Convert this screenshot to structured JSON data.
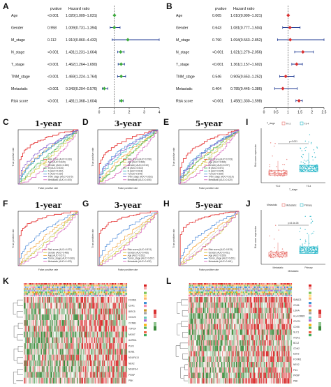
{
  "panel_labels": {
    "A": "A",
    "B": "B",
    "C": "C",
    "D": "D",
    "E": "E",
    "I": "I",
    "F": "F",
    "G": "G",
    "H": "H",
    "J": "J",
    "K": "K",
    "L": "L"
  },
  "chart_data": [
    {
      "id": "A",
      "type": "forest",
      "columns": {
        "pvalue": "pvalue",
        "hr": "Hazard ratio"
      },
      "xlabel": "Hazard ratio",
      "xticks": [
        0,
        1,
        2,
        3,
        4
      ],
      "xlim": [
        0,
        4
      ],
      "ref_line": 1,
      "color": "#3daa3d",
      "rows": [
        {
          "name": "Age",
          "pvalue": "<0.001",
          "hr_text": "1.020(1.009–1.031)",
          "hr": 1.02,
          "lo": 1.009,
          "hi": 1.031
        },
        {
          "name": "Gender",
          "pvalue": "0.958",
          "hr_text": "1.009(0.731–1.394)",
          "hr": 1.009,
          "lo": 0.731,
          "hi": 1.394
        },
        {
          "name": "M_stage",
          "pvalue": "0.112",
          "hr_text": "1.910(0.860–4.432)",
          "hr": 1.91,
          "lo": 0.86,
          "hi": 4.432
        },
        {
          "name": "N_stage",
          "pvalue": "<0.001",
          "hr_text": "1.431(1.231–1.664)",
          "hr": 1.431,
          "lo": 1.231,
          "hi": 1.664
        },
        {
          "name": "T_stage",
          "pvalue": "<0.001",
          "hr_text": "1.462(1.264–1.690)",
          "hr": 1.462,
          "lo": 1.264,
          "hi": 1.69
        },
        {
          "name": "TNM_stage",
          "pvalue": "<0.001",
          "hr_text": "1.469(1.224–1.764)",
          "hr": 1.469,
          "lo": 1.224,
          "hi": 1.764
        },
        {
          "name": "Metastatic",
          "pvalue": "<0.001",
          "hr_text": "0.343(0.204–0.576)",
          "hr": 0.343,
          "lo": 0.204,
          "hi": 0.576
        },
        {
          "name": "Risk score",
          "pvalue": "<0.001",
          "hr_text": "1.481(1.368–1.604)",
          "hr": 1.481,
          "lo": 1.368,
          "hi": 1.604
        }
      ]
    },
    {
      "id": "B",
      "type": "forest",
      "columns": {
        "pvalue": "pvalue",
        "hr": "Hazard ratio"
      },
      "xlabel": "Hazard ratio",
      "xticks": [
        0,
        0.5,
        1,
        1.5,
        2,
        2.5
      ],
      "xlim": [
        0,
        2.5
      ],
      "ref_line": 1,
      "color": "#d93030",
      "rows": [
        {
          "name": "Age",
          "pvalue": "0.065",
          "hr_text": "1.010(0.999–1.021)",
          "hr": 1.01,
          "lo": 0.999,
          "hi": 1.021
        },
        {
          "name": "Gender",
          "pvalue": "0.643",
          "hr_text": "1.081(0.777–1.504)",
          "hr": 1.081,
          "lo": 0.777,
          "hi": 1.504
        },
        {
          "name": "M_stage",
          "pvalue": "0.790",
          "hr_text": "1.094(0.563–2.852)",
          "hr": 1.094,
          "lo": 0.563,
          "hi": 2.852
        },
        {
          "name": "N_stage",
          "pvalue": "<0.001",
          "hr_text": "1.621(1.279–2.056)",
          "hr": 1.621,
          "lo": 1.279,
          "hi": 2.056
        },
        {
          "name": "T_stage",
          "pvalue": "<0.001",
          "hr_text": "1.361(1.157–1.602)",
          "hr": 1.361,
          "lo": 1.157,
          "hi": 1.602
        },
        {
          "name": "TNM_stage",
          "pvalue": "0.546",
          "hr_text": "0.905(0.653–1.252)",
          "hr": 0.905,
          "lo": 0.653,
          "hi": 1.252
        },
        {
          "name": "Metastatic",
          "pvalue": "0.404",
          "hr_text": "0.785(0.445–1.386)",
          "hr": 0.785,
          "lo": 0.445,
          "hi": 1.386
        },
        {
          "name": "Risk score",
          "pvalue": "<0.001",
          "hr_text": "1.458(1.330–1.598)",
          "hr": 1.458,
          "lo": 1.33,
          "hi": 1.598
        }
      ]
    },
    {
      "id": "C",
      "type": "line",
      "title": "1-year",
      "xlabel": "False positive rate",
      "ylabel": "True positive rate",
      "xlim": [
        0,
        1
      ],
      "ylim": [
        0,
        1
      ],
      "series": [
        {
          "name": "Risk score (AUC=0.819)",
          "color": "#e63c3c"
        },
        {
          "name": "Age (AUC=0.629)",
          "color": "#f0a030"
        },
        {
          "name": "Gender (AUC=0.480)",
          "color": "#c7c42c"
        },
        {
          "name": "M (AUC=0.534)",
          "color": "#3cb44b"
        },
        {
          "name": "N (AUC=0.613)",
          "color": "#2fb8b8"
        },
        {
          "name": "T (AUC=0.614)",
          "color": "#3a7fd5"
        },
        {
          "name": "TNM_stage (AUC=0.675)",
          "color": "#7b4fc9"
        },
        {
          "name": "Metastatic (AUC=0.400)",
          "color": "#d455b5"
        }
      ]
    },
    {
      "id": "D",
      "type": "line",
      "title": "3-year",
      "xlabel": "False positive rate",
      "ylabel": "True positive rate",
      "xlim": [
        0,
        1
      ],
      "ylim": [
        0,
        1
      ],
      "series": [
        {
          "name": "Risk score (AUC=0.780)",
          "color": "#e63c3c"
        },
        {
          "name": "Age (AUC=0.566)",
          "color": "#f0a030"
        },
        {
          "name": "Gender (AUC=0.510)",
          "color": "#c7c42c"
        },
        {
          "name": "M (AUC=0.513)",
          "color": "#3cb44b"
        },
        {
          "name": "N (AUC=0.618)",
          "color": "#2fb8b8"
        },
        {
          "name": "T (AUC=0.675)",
          "color": "#3a7fd5"
        },
        {
          "name": "TNM_stage (AUC=0.652)",
          "color": "#7b4fc9"
        },
        {
          "name": "Metastatic (AUC=0.406)",
          "color": "#d455b5"
        }
      ]
    },
    {
      "id": "E",
      "type": "line",
      "title": "5-year",
      "xlabel": "False positive rate",
      "ylabel": "True positive rate",
      "xlim": [
        0,
        1
      ],
      "ylim": [
        0,
        1
      ],
      "series": [
        {
          "name": "Risk score (AUC=0.763)",
          "color": "#e63c3c"
        },
        {
          "name": "Age (AUC=0.566)",
          "color": "#f0a030"
        },
        {
          "name": "Gender (AUC=0.497)",
          "color": "#c7c42c"
        },
        {
          "name": "M (AUC=0.571)",
          "color": "#3cb44b"
        },
        {
          "name": "N (AUC=0.625)",
          "color": "#2fb8b8"
        },
        {
          "name": "T (AUC=0.639)",
          "color": "#3a7fd5"
        },
        {
          "name": "TNM_stage (AUC=0.619)",
          "color": "#7b4fc9"
        },
        {
          "name": "Metastatic (AUC=0.420)",
          "color": "#d455b5"
        }
      ]
    },
    {
      "id": "F",
      "type": "line",
      "title": "1-year",
      "xlabel": "False positive rate",
      "ylabel": "True positive rate",
      "xlim": [
        0,
        1
      ],
      "ylim": [
        0,
        1
      ],
      "series": [
        {
          "name": "Risk score (AUC=0.872)",
          "color": "#e63c3c"
        },
        {
          "name": "Gender (AUC=0.486)",
          "color": "#c7c42c"
        },
        {
          "name": "Age (AUC=0.571)",
          "color": "#f0a030"
        },
        {
          "name": "Tumor_stage (AUC=0.660)",
          "color": "#3a7fd5"
        },
        {
          "name": "Metastatic (AUC=0.429)",
          "color": "#d455b5"
        }
      ]
    },
    {
      "id": "G",
      "type": "line",
      "title": "3-year",
      "xlabel": "False positive rate",
      "ylabel": "True positive rate",
      "xlim": [
        0,
        1
      ],
      "ylim": [
        0,
        1
      ],
      "series": [
        {
          "name": "Risk score (AUC=0.874)",
          "color": "#e63c3c"
        },
        {
          "name": "Gender (AUC=0.465)",
          "color": "#c7c42c"
        },
        {
          "name": "Age (AUC=0.552)",
          "color": "#f0a030"
        },
        {
          "name": "Tumor_stage (AUC=0.657)",
          "color": "#3a7fd5"
        },
        {
          "name": "Metastatic (AUC=0.432)",
          "color": "#d455b5"
        }
      ]
    },
    {
      "id": "H",
      "type": "line",
      "title": "5-year",
      "xlabel": "False positive rate",
      "ylabel": "True positive rate",
      "xlim": [
        0,
        1
      ],
      "ylim": [
        0,
        1
      ],
      "series": [
        {
          "name": "Risk score (AUC=0.878)",
          "color": "#e63c3c"
        },
        {
          "name": "Gender (AUC=0.451)",
          "color": "#c7c42c"
        },
        {
          "name": "Age (AUC=0.559)",
          "color": "#f0a030"
        },
        {
          "name": "Tumor_stage (AUC=0.651)",
          "color": "#3a7fd5"
        },
        {
          "name": "Metastatic (AUC=0.461)",
          "color": "#d455b5"
        }
      ]
    },
    {
      "id": "I",
      "type": "box",
      "legend_title": "T_stage",
      "groups": [
        "T0-2",
        "T3-4"
      ],
      "colors": [
        "#e8706a",
        "#2ab7c9"
      ],
      "xlabel": "T_stage",
      "ylabel": "Risk score expression",
      "pvalue": "p=0.001"
    },
    {
      "id": "J",
      "type": "box",
      "legend_title": "Metastatic",
      "groups": [
        "Metastatic",
        "Primary"
      ],
      "colors": [
        "#e8706a",
        "#2ab7c9"
      ],
      "xlabel": "Metastatic",
      "ylabel": "Risk score expression",
      "pvalue": "p=8.4e-05"
    },
    {
      "id": "K",
      "type": "heatmap",
      "genes": [
        "FOXM1",
        "CDK1",
        "BIRC5",
        "CDC20",
        "CCNB1",
        "TOP2A",
        "MKI67",
        "AURKA",
        "PLK1",
        "BUB1",
        "NDUFA13",
        "NEK2",
        "NDUFS4",
        "PRNP",
        "PBK"
      ],
      "colors": [
        "#3b8a3b",
        "#ffffff",
        "#d93030"
      ]
    },
    {
      "id": "L",
      "type": "heatmap",
      "genes": [
        "SMAD3",
        "CD36",
        "LDHA",
        "HLA-DRB5",
        "CD274",
        "CDK6",
        "SLC1",
        "ITGA1",
        "BCL2",
        "CDH2",
        "EZH2",
        "FOXM1",
        "NEK2",
        "FN1",
        "PRNP",
        "PBK"
      ],
      "colors": [
        "#3b8a3b",
        "#ffffff",
        "#d93030"
      ]
    }
  ]
}
